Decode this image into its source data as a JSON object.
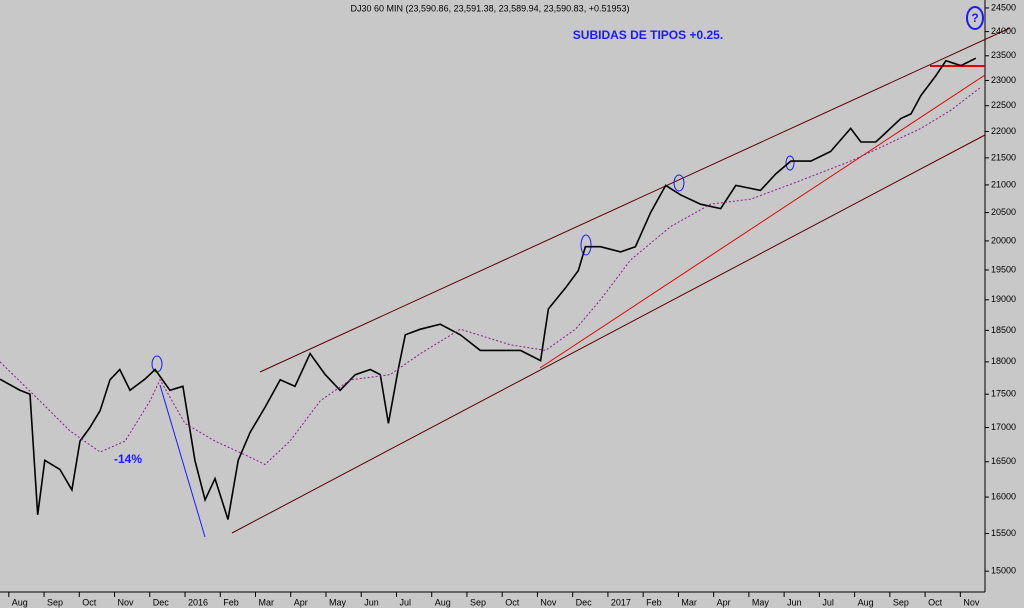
{
  "chart_data": {
    "type": "line",
    "title": "DJ30 60 MIN (23,590.86, 23,591.38, 23,589.94, 23,590.83, +0.51953)",
    "annotations": [
      "SUBIDAS DE TIPOS +0.25.",
      "-14%",
      "?"
    ],
    "log_scale": true,
    "grid": false,
    "xlim": [
      -0.25,
      27.7
    ],
    "xticks": [
      {
        "value": 0,
        "label": "Aug"
      },
      {
        "value": 1,
        "label": "Sep"
      },
      {
        "value": 2,
        "label": "Oct"
      },
      {
        "value": 3,
        "label": "Nov"
      },
      {
        "value": 4,
        "label": "Dec"
      },
      {
        "value": 5,
        "label": "2016"
      },
      {
        "value": 6,
        "label": "Feb"
      },
      {
        "value": 7,
        "label": "Mar"
      },
      {
        "value": 8,
        "label": "Apr"
      },
      {
        "value": 9,
        "label": "May"
      },
      {
        "value": 10,
        "label": "Jun"
      },
      {
        "value": 11,
        "label": "Jul"
      },
      {
        "value": 12,
        "label": "Aug"
      },
      {
        "value": 13,
        "label": "Sep"
      },
      {
        "value": 14,
        "label": "Oct"
      },
      {
        "value": 15,
        "label": "Nov"
      },
      {
        "value": 16,
        "label": "Dec"
      },
      {
        "value": 17,
        "label": "2017"
      },
      {
        "value": 18,
        "label": "Feb"
      },
      {
        "value": 19,
        "label": "Mar"
      },
      {
        "value": 20,
        "label": "Apr"
      },
      {
        "value": 21,
        "label": "May"
      },
      {
        "value": 22,
        "label": "Jun"
      },
      {
        "value": 23,
        "label": "Jul"
      },
      {
        "value": 24,
        "label": "Aug"
      },
      {
        "value": 25,
        "label": "Sep"
      },
      {
        "value": 26,
        "label": "Oct"
      },
      {
        "value": 27,
        "label": "Nov"
      }
    ],
    "ylim": [
      14730,
      24670
    ],
    "yticks": [
      15000,
      15500,
      16000,
      16500,
      17000,
      17500,
      18000,
      18500,
      19000,
      19500,
      20000,
      20500,
      21000,
      21500,
      22000,
      22500,
      23000,
      23500,
      24000,
      24500
    ],
    "series": [
      {
        "color": "#000000",
        "style": "solid",
        "x": [
          -0.25,
          0.31,
          0.6,
          0.82,
          1.02,
          1.45,
          1.79,
          2.02,
          2.3,
          2.59,
          2.87,
          3.15,
          3.44,
          3.86,
          4.15,
          4.57,
          4.94,
          5.28,
          5.57,
          5.85,
          6.22,
          6.51,
          6.85,
          7.27,
          7.7,
          8.12,
          8.55,
          8.98,
          9.4,
          9.83,
          10.26,
          10.54,
          10.77,
          11.05,
          11.25,
          11.68,
          12.24,
          12.81,
          13.38,
          13.95,
          14.52,
          15.09,
          15.31,
          15.8,
          16.16,
          16.36,
          16.79,
          17.36,
          17.78,
          18.21,
          18.64,
          19.06,
          19.63,
          20.2,
          20.63,
          21.33,
          21.76,
          22.19,
          22.76,
          23.32,
          23.89,
          24.18,
          24.6,
          24.89,
          25.31,
          25.6,
          25.88,
          26.31,
          26.59,
          27.02,
          27.44
        ],
        "values": [
          17730,
          17563,
          17500,
          15755,
          16520,
          16390,
          16100,
          16800,
          17000,
          17250,
          17720,
          17880,
          17560,
          17730,
          17880,
          17560,
          17620,
          16520,
          15960,
          16260,
          15690,
          16520,
          16930,
          17300,
          17720,
          17620,
          18130,
          17800,
          17560,
          17800,
          17880,
          17800,
          17060,
          17880,
          18430,
          18520,
          18600,
          18430,
          18180,
          18180,
          18180,
          18020,
          18850,
          19200,
          19490,
          19900,
          19900,
          19810,
          19900,
          20500,
          20990,
          20820,
          20650,
          20570,
          20990,
          20900,
          21200,
          21440,
          21440,
          21620,
          22060,
          21800,
          21800,
          21980,
          22250,
          22340,
          22700,
          23100,
          23400,
          23300,
          23450
        ]
      },
      {
        "color": "#8b1a8b",
        "style": "dotted",
        "x": [
          -0.25,
          0.88,
          1.73,
          2.59,
          3.3,
          4.01,
          4.29,
          5.0,
          5.85,
          6.7,
          7.27,
          7.98,
          8.84,
          9.69,
          10.82,
          11.68,
          12.81,
          14.23,
          15.23,
          16.08,
          16.79,
          17.64,
          18.78,
          19.91,
          21.05,
          22.47,
          23.89,
          24.74,
          25.88,
          26.73,
          27.59
        ],
        "values": [
          18000,
          17400,
          16950,
          16640,
          16800,
          17400,
          17720,
          17060,
          16800,
          16600,
          16460,
          16800,
          17400,
          17720,
          17800,
          18130,
          18520,
          18270,
          18180,
          18520,
          19000,
          19670,
          20250,
          20650,
          20740,
          21080,
          21440,
          21700,
          22060,
          22410,
          22870
        ]
      }
    ]
  }
}
